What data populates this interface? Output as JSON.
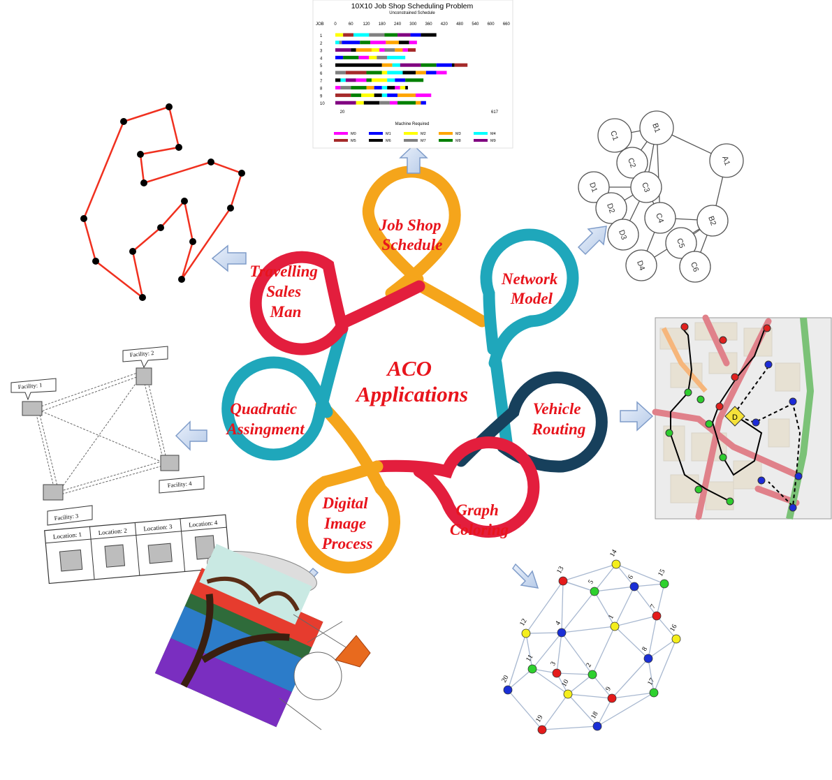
{
  "center": {
    "line1": "ACO",
    "line2": "Applications"
  },
  "petals": [
    {
      "id": "job-shop",
      "lines": [
        "Job Shop",
        "Schedule"
      ],
      "color": "#f5a51b"
    },
    {
      "id": "network",
      "lines": [
        "Network",
        "Model"
      ],
      "color": "#1fa7bb"
    },
    {
      "id": "vehicle",
      "lines": [
        "Vehicle",
        "Routing"
      ],
      "color": "#17405c"
    },
    {
      "id": "graph",
      "lines": [
        "Graph",
        "Coloring"
      ],
      "color": "#e31e3d"
    },
    {
      "id": "image",
      "lines": [
        "Digital",
        "Image",
        "Process"
      ],
      "color": "#f5a51b"
    },
    {
      "id": "qap",
      "lines": [
        "Quadratic",
        "Assingment"
      ],
      "color": "#1fa7bb"
    },
    {
      "id": "tsp",
      "lines": [
        "Travelling",
        "Sales",
        "Man"
      ],
      "color": "#e31e3d"
    }
  ],
  "jobshop": {
    "title": "10X10 Job Shop Scheduling Problem",
    "subtitle": "Unconstrained Schedule",
    "job_label": "JOB",
    "axis_ticks": [
      "0",
      "60",
      "120",
      "180",
      "240",
      "300",
      "360",
      "420",
      "480",
      "540",
      "600",
      "660"
    ],
    "jobs": [
      "1",
      "2",
      "3",
      "4",
      "5",
      "6",
      "7",
      "8",
      "9",
      "10"
    ],
    "bottom_left": "20",
    "bottom_right": "617",
    "legend_title": "Machine Required",
    "machines": [
      "M0",
      "M1",
      "M2",
      "M3",
      "M4",
      "M5",
      "M6",
      "M7",
      "M8",
      "M9"
    ],
    "machine_colors": [
      "#ff00ff",
      "#0000ff",
      "#ffff00",
      "#ffa500",
      "#00ffff",
      "#a52a2a",
      "#000000",
      "#808080",
      "#008000",
      "#800080"
    ]
  },
  "network": {
    "nodes": [
      "C1",
      "B1",
      "C2",
      "A1",
      "D1",
      "C3",
      "D2",
      "C4",
      "B2",
      "D3",
      "C5",
      "D4",
      "C6"
    ]
  },
  "qap": {
    "facilities": [
      "Facility: 1",
      "Facility: 2",
      "Facility: 3",
      "Facility: 4"
    ],
    "locations": [
      "Location: 1",
      "Location: 2",
      "Location: 3",
      "Location: 4"
    ]
  },
  "graph": {
    "nodes": [
      "1",
      "2",
      "3",
      "4",
      "5",
      "6",
      "7",
      "8",
      "9",
      "10",
      "11",
      "12",
      "13",
      "14",
      "15",
      "16",
      "17",
      "18",
      "19",
      "20"
    ]
  },
  "vehicle": {
    "depot_label": "D"
  }
}
